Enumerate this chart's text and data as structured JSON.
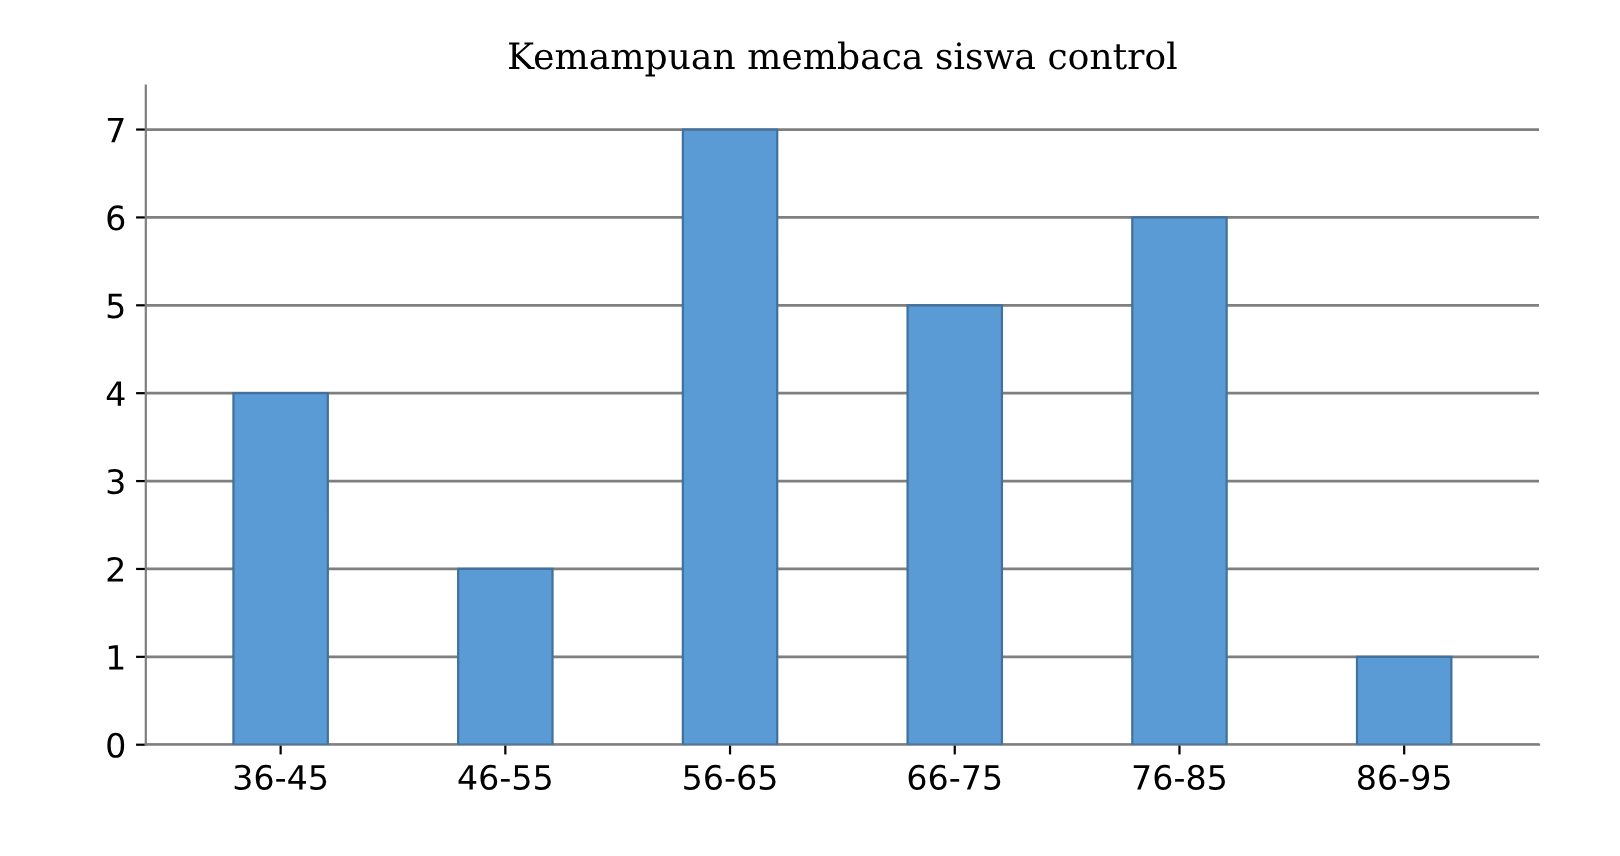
{
  "chart_data": {
    "type": "bar",
    "title": "Kemampuan membaca siswa control",
    "categories": [
      "36-45",
      "46-55",
      "56-65",
      "66-75",
      "76-85",
      "86-95"
    ],
    "values": [
      4,
      2,
      7,
      5,
      6,
      1
    ],
    "color": "#5b9bd5",
    "ylim": [
      0,
      7.5
    ],
    "yticks": [
      0,
      1,
      2,
      3,
      4,
      5,
      6,
      7
    ],
    "grid": "y"
  }
}
